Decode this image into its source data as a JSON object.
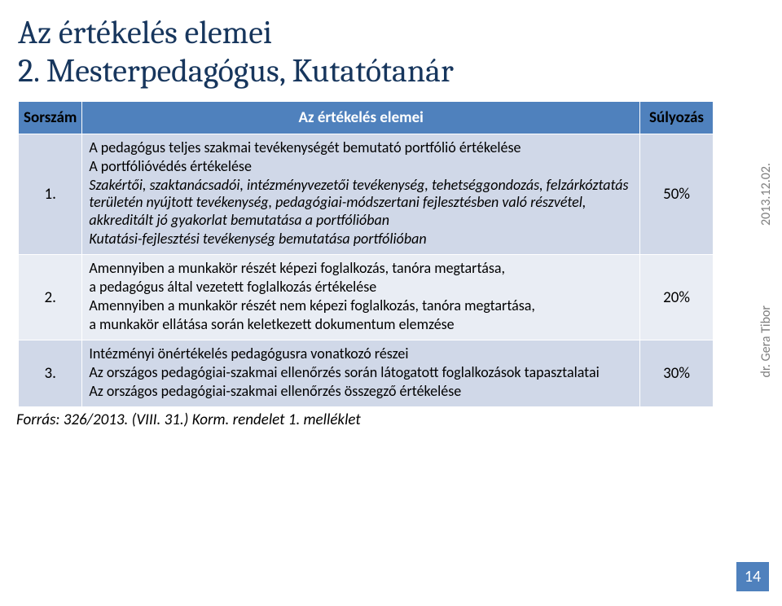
{
  "title": {
    "line1": "Az értékelés elemei",
    "line2": "2. Mesterpedagógus, Kutatótanár",
    "color": "#17365d",
    "fontsize": 40
  },
  "table": {
    "header_bg": "#4f81bd",
    "header_fg": "#ffffff",
    "row_bg_odd": "#d0d8e8",
    "row_bg_even": "#e9edf4",
    "columns": {
      "num": "Sorszám",
      "body": "Az értékelés elemei",
      "weight": "Súlyozás"
    },
    "rows": [
      {
        "num": "1.",
        "weight": "50%",
        "body": {
          "p1": "A pedagógus teljes szakmai tevékenységét bemutató portfólió értékelése",
          "p2": "A portfólióvédés értékelése",
          "p3": "Szakértői, szaktanácsadói, intézményvezetői tevékenység, tehetséggondozás, felzárkóztatás területén nyújtott tevékenység, pedagógiai-módszertani fejlesztésben való részvétel, akkreditált jó gyakorlat bemutatása a portfólióban",
          "p4": "Kutatási-fejlesztési tevékenység bemutatása portfólióban"
        }
      },
      {
        "num": "2.",
        "weight": "20%",
        "body": {
          "p1": "Amennyiben a munkakör részét képezi foglalkozás, tanóra megtartása,",
          "p2": "a pedagógus által vezetett foglalkozás értékelése",
          "p3": "Amennyiben a munkakör részét nem képezi foglalkozás, tanóra megtartása,",
          "p4": "a munkakör ellátása során keletkezett dokumentum elemzése"
        }
      },
      {
        "num": "3.",
        "weight": "30%",
        "body": {
          "p1": "Intézményi önértékelés pedagógusra vonatkozó részei",
          "p2": "Az országos pedagógiai-szakmai ellenőrzés során látogatott foglalkozások tapasztalatai",
          "p3": "Az országos pedagógiai-szakmai ellenőrzés összegző értékelése"
        }
      }
    ]
  },
  "source": "Forrás: 326/2013. (VIII. 31.) Korm. rendelet 1. melléklet",
  "side": {
    "date": "2013.12.02.",
    "author": "dr. Gera Tibor"
  },
  "page_number": "14",
  "accent_color": "#4f81bd",
  "muted_color": "#7f7f7f"
}
